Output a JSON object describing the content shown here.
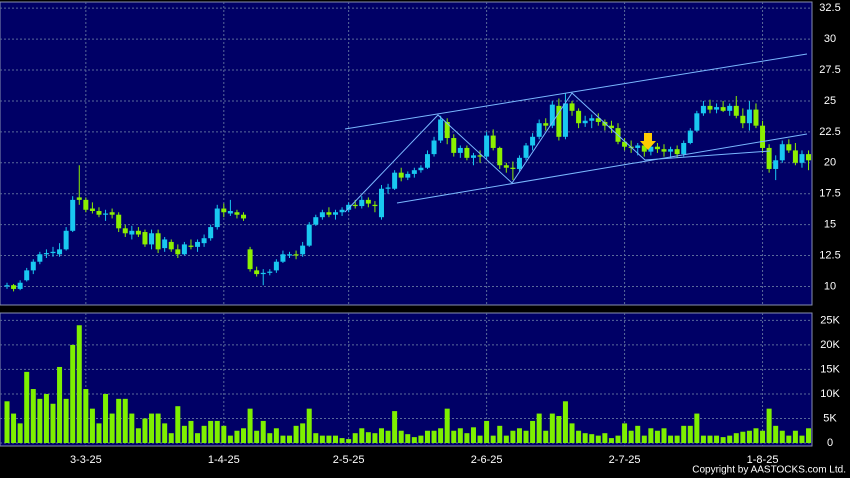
{
  "chart_data": {
    "type": "candlestick",
    "categories": [
      null,
      null,
      null,
      null,
      null,
      null,
      null,
      null,
      null,
      null,
      null,
      null,
      "3-3-25",
      null,
      null,
      null,
      null,
      null,
      null,
      null,
      null,
      null,
      null,
      null,
      null,
      null,
      null,
      null,
      null,
      null,
      null,
      null,
      null,
      "1-4-25",
      null,
      null,
      null,
      null,
      null,
      null,
      null,
      null,
      null,
      null,
      null,
      null,
      null,
      null,
      null,
      null,
      null,
      null,
      "2-5-25",
      null,
      null,
      null,
      null,
      null,
      null,
      null,
      null,
      null,
      null,
      null,
      null,
      null,
      null,
      null,
      null,
      null,
      null,
      null,
      null,
      "2-6-25",
      null,
      null,
      null,
      null,
      null,
      null,
      null,
      null,
      null,
      null,
      null,
      null,
      null,
      null,
      null,
      null,
      null,
      null,
      null,
      null,
      "2-7-25",
      null,
      null,
      null,
      null,
      null,
      null,
      null,
      null,
      null,
      null,
      null,
      null,
      null,
      null,
      null,
      null,
      null,
      null,
      null,
      null,
      "1-8-25",
      null,
      null,
      null,
      null,
      null,
      null,
      null
    ],
    "ohlc": [
      [
        10,
        10.3,
        9.8,
        10.1
      ],
      [
        10.1,
        10.2,
        9.6,
        9.8
      ],
      [
        9.8,
        10.5,
        9.7,
        10.3
      ],
      [
        10.5,
        11.5,
        10.4,
        11.3
      ],
      [
        11.3,
        12.2,
        11,
        12
      ],
      [
        12,
        12.8,
        11.8,
        12.6
      ],
      [
        12.6,
        13,
        12.3,
        12.7
      ],
      [
        12.7,
        13.2,
        12.4,
        12.8
      ],
      [
        12.6,
        13.5,
        12.4,
        13
      ],
      [
        13,
        14.8,
        12.9,
        14.5
      ],
      [
        14.5,
        17.3,
        14.4,
        17
      ],
      [
        17.2,
        19.8,
        16.6,
        17
      ],
      [
        17,
        17.2,
        16,
        16.2
      ],
      [
        16.3,
        16.8,
        15.9,
        16.1
      ],
      [
        16.1,
        16.4,
        15.6,
        15.8
      ],
      [
        15.8,
        16.2,
        15.3,
        15.9
      ],
      [
        16,
        16.3,
        15.5,
        15.8
      ],
      [
        15.8,
        16,
        14.4,
        14.7
      ],
      [
        14.7,
        15,
        14,
        14.3
      ],
      [
        14.2,
        14.9,
        13.8,
        14.5
      ],
      [
        14.5,
        14.8,
        14,
        14.2
      ],
      [
        14.4,
        14.6,
        13.2,
        13.4
      ],
      [
        13.4,
        14.6,
        13,
        14.3
      ],
      [
        14.3,
        14.6,
        12.7,
        13
      ],
      [
        13.1,
        14,
        12.8,
        13.8
      ],
      [
        13.6,
        13.8,
        12.8,
        13
      ],
      [
        13,
        13.4,
        12.3,
        12.6
      ],
      [
        12.6,
        13.6,
        12.5,
        13.4
      ],
      [
        13.3,
        13.8,
        13,
        13.2
      ],
      [
        13.2,
        13.8,
        12.8,
        13.6
      ],
      [
        13.5,
        14.2,
        13.2,
        13.9
      ],
      [
        13.9,
        15,
        13.7,
        14.8
      ],
      [
        14.8,
        16.6,
        14.6,
        16.3
      ],
      [
        16.3,
        16.7,
        15.6,
        16
      ],
      [
        15.9,
        17,
        15.7,
        16.1
      ],
      [
        16,
        16.2,
        15.5,
        15.8
      ],
      [
        15.8,
        16,
        15.3,
        15.5
      ],
      [
        13,
        13.2,
        11.2,
        11.4
      ],
      [
        11.3,
        11.6,
        10.8,
        11
      ],
      [
        11,
        11.4,
        10.1,
        11.1
      ],
      [
        11.1,
        11.4,
        10.9,
        11.2
      ],
      [
        11.3,
        12.2,
        11.1,
        12
      ],
      [
        12,
        12.9,
        11.9,
        12.6
      ],
      [
        12.5,
        12.8,
        12.3,
        12.6
      ],
      [
        12.6,
        12.9,
        12.2,
        12.5
      ],
      [
        12.6,
        13.6,
        12.4,
        13.3
      ],
      [
        13.3,
        15.2,
        13.2,
        15
      ],
      [
        15,
        15.8,
        14.9,
        15.6
      ],
      [
        15.6,
        16.2,
        15.4,
        16
      ],
      [
        16,
        16.4,
        15.6,
        15.8
      ],
      [
        15.8,
        16.2,
        15.4,
        16
      ],
      [
        16,
        16.4,
        15.7,
        16.2
      ],
      [
        16.2,
        16.8,
        16,
        16.6
      ],
      [
        16.6,
        17,
        16.3,
        16.5
      ],
      [
        16.5,
        17.3,
        16.3,
        17
      ],
      [
        17,
        17.2,
        16.4,
        16.7
      ],
      [
        16.6,
        16.9,
        16,
        16.5
      ],
      [
        15.6,
        18.2,
        15.4,
        17.9
      ],
      [
        17.9,
        18.3,
        17.5,
        18
      ],
      [
        17.9,
        19.4,
        17.8,
        19.2
      ],
      [
        19.2,
        19.6,
        18.5,
        18.8
      ],
      [
        18.8,
        19.3,
        18.6,
        19.1
      ],
      [
        19.1,
        19.6,
        18.8,
        19.4
      ],
      [
        19.4,
        19.8,
        19.2,
        19.6
      ],
      [
        19.6,
        21,
        19.5,
        20.7
      ],
      [
        20.7,
        22.1,
        20.5,
        21.8
      ],
      [
        21.8,
        23.8,
        21.6,
        23.5
      ],
      [
        23.3,
        23.6,
        21.5,
        22
      ],
      [
        22,
        22.3,
        20.5,
        20.8
      ],
      [
        20.8,
        21.4,
        20.4,
        21.2
      ],
      [
        21.2,
        21.4,
        20.2,
        20.4
      ],
      [
        20.4,
        20.8,
        19.8,
        20.6
      ],
      [
        20.6,
        21,
        20,
        20.5
      ],
      [
        20.5,
        22.5,
        20.3,
        22.2
      ],
      [
        22.2,
        22.7,
        21,
        21.2
      ],
      [
        21.2,
        21.3,
        19.5,
        19.8
      ],
      [
        19.8,
        20,
        19.2,
        19.6
      ],
      [
        19.6,
        20.1,
        18.6,
        19.5
      ],
      [
        19.5,
        20.6,
        19.3,
        20.4
      ],
      [
        20.4,
        21.6,
        20.2,
        21.4
      ],
      [
        21.4,
        22.4,
        21,
        22.1
      ],
      [
        22.1,
        23.5,
        21.9,
        23.2
      ],
      [
        23.2,
        23.6,
        22.6,
        23
      ],
      [
        23,
        25,
        22.8,
        24.7
      ],
      [
        24.6,
        25.2,
        21.8,
        22.1
      ],
      [
        22.1,
        25.6,
        21.9,
        24.8
      ],
      [
        24.8,
        25,
        23.8,
        24.2
      ],
      [
        24.2,
        24.4,
        22.8,
        23.2
      ],
      [
        23.2,
        23.8,
        22.9,
        23.4
      ],
      [
        23.4,
        23.9,
        22.8,
        23.6
      ],
      [
        23.6,
        24,
        23,
        23.3
      ],
      [
        23.3,
        23.5,
        22.6,
        23
      ],
      [
        23,
        23.4,
        22.4,
        22.8
      ],
      [
        22.8,
        23.2,
        21.5,
        21.7
      ],
      [
        21.7,
        22,
        21,
        21.3
      ],
      [
        21.3,
        21.8,
        20.8,
        21.2
      ],
      [
        21.2,
        21.6,
        20.6,
        21.4
      ],
      [
        21.4,
        21.8,
        20.5,
        20.9
      ],
      [
        20.9,
        21.6,
        20.6,
        21.3
      ],
      [
        21.3,
        21.6,
        20.8,
        21.1
      ],
      [
        21.1,
        21.5,
        20.5,
        20.9
      ],
      [
        20.9,
        21.3,
        20.4,
        21.1
      ],
      [
        21.1,
        21.4,
        20.4,
        20.7
      ],
      [
        20.7,
        21.8,
        20.5,
        21.6
      ],
      [
        21.6,
        22.8,
        21.5,
        22.6
      ],
      [
        22.6,
        24.2,
        22.5,
        24
      ],
      [
        24,
        25,
        23.8,
        24.6
      ],
      [
        24.6,
        25.1,
        24,
        24.3
      ],
      [
        24.3,
        24.8,
        24,
        24.5
      ],
      [
        24.5,
        25,
        24.1,
        24.2
      ],
      [
        24.2,
        24.8,
        23.8,
        24.6
      ],
      [
        24.6,
        25.4,
        23.6,
        23.8
      ],
      [
        23.8,
        24.4,
        22.8,
        23.2
      ],
      [
        23.2,
        25,
        22.6,
        24.3
      ],
      [
        24.3,
        24.8,
        22.8,
        23
      ],
      [
        23,
        23.4,
        20.8,
        21.2
      ],
      [
        21.2,
        21.5,
        19.2,
        19.5
      ],
      [
        19.5,
        20.6,
        18.6,
        20.2
      ],
      [
        20.2,
        21.8,
        20,
        21.5
      ],
      [
        21.5,
        21.9,
        20.8,
        21
      ],
      [
        21,
        21.6,
        19.8,
        20
      ],
      [
        20,
        21,
        19.6,
        20.7
      ],
      [
        20.7,
        21,
        19.4,
        20.2
      ]
    ],
    "up_color": "#19c8f0",
    "down_color": "#8cf000",
    "ylim": [
      8.5,
      33
    ],
    "yticks": [
      10,
      12.5,
      15,
      17.5,
      20,
      22.5,
      25,
      27.5,
      30,
      32.5
    ],
    "grid": true,
    "volume": {
      "color": "#7ef000",
      "values": [
        8500,
        6000,
        4000,
        14500,
        11000,
        9000,
        10000,
        8000,
        15500,
        9000,
        20000,
        24000,
        11000,
        7000,
        4000,
        10000,
        6000,
        9000,
        9000,
        6000,
        3000,
        5000,
        6000,
        6000,
        4000,
        2000,
        7500,
        3500,
        4500,
        2000,
        3500,
        4500,
        4500,
        3500,
        1500,
        2500,
        3000,
        7000,
        2500,
        4500,
        2000,
        3000,
        1500,
        1500,
        3500,
        4000,
        7000,
        2000,
        1500,
        1500,
        1500,
        1000,
        800,
        2000,
        3000,
        2200,
        2000,
        3000,
        2500,
        6500,
        2500,
        1800,
        1200,
        1500,
        2500,
        2500,
        3000,
        7000,
        2500,
        3000,
        2000,
        3200,
        1500,
        4500,
        1500,
        3500,
        1500,
        2500,
        3000,
        2500,
        4500,
        6000,
        2500,
        6000,
        5500,
        8500,
        4000,
        2500,
        2000,
        1800,
        1500,
        2000,
        1000,
        1500,
        4000,
        2500,
        3500,
        1500,
        3000,
        2500,
        3000,
        1500,
        1500,
        3500,
        3500,
        6000,
        1500,
        1500,
        1500,
        1200,
        1500,
        2000,
        2300,
        2500,
        3000,
        2500,
        7000,
        3500,
        2500,
        1500,
        2500,
        1500,
        3000
      ],
      "ylim": [
        0,
        26500
      ],
      "yticks": [
        0,
        {
          "value": 5000,
          "label": "5K"
        },
        {
          "value": 10000,
          "label": "10K"
        },
        {
          "value": 15000,
          "label": "15K"
        },
        {
          "value": 20000,
          "label": "20K"
        },
        {
          "value": 25000,
          "label": "25K"
        }
      ]
    }
  },
  "footer": {
    "copyright": "Copyright by AASTOCKS.com Ltd."
  }
}
